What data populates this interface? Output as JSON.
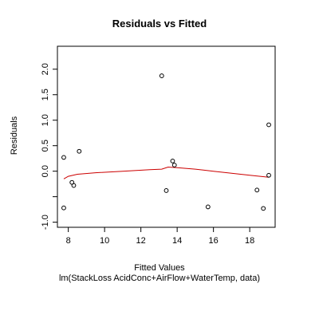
{
  "chart_data": {
    "type": "scatter",
    "title": "Residuals vs Fitted",
    "xlabel": "Fitted Values",
    "subtitle": "lm(StackLoss AcidConc+AirFlow+WaterTemp, data)",
    "ylabel": "Residuals",
    "xlim": [
      7.4,
      19.4
    ],
    "ylim": [
      -1.1,
      2.45
    ],
    "x_ticks": [
      8,
      10,
      12,
      14,
      16,
      18
    ],
    "x_tick_labels": [
      "8",
      "10",
      "12",
      "14",
      "16",
      "18"
    ],
    "y_ticks": [
      -1.0,
      -0.5,
      0.0,
      0.5,
      1.0,
      1.5,
      2.0
    ],
    "y_tick_labels": [
      "-1.0",
      "",
      "0.0",
      "0.5",
      "1.0",
      "1.5",
      "2.0"
    ],
    "points": [
      {
        "x": 7.75,
        "y": 0.27
      },
      {
        "x": 7.75,
        "y": -0.72
      },
      {
        "x": 8.2,
        "y": -0.22
      },
      {
        "x": 8.3,
        "y": -0.28
      },
      {
        "x": 8.6,
        "y": 0.39
      },
      {
        "x": 13.15,
        "y": 1.87
      },
      {
        "x": 13.4,
        "y": -0.38
      },
      {
        "x": 13.75,
        "y": 0.2
      },
      {
        "x": 13.85,
        "y": 0.12
      },
      {
        "x": 15.7,
        "y": -0.7
      },
      {
        "x": 18.4,
        "y": -0.37
      },
      {
        "x": 18.75,
        "y": -0.73
      },
      {
        "x": 19.05,
        "y": 0.91
      },
      {
        "x": 19.05,
        "y": -0.08
      }
    ],
    "smooth": {
      "color": "#cc0000",
      "x": [
        7.75,
        8.0,
        8.5,
        9.5,
        11.0,
        12.5,
        13.15,
        13.5,
        14.0,
        15.0,
        16.0,
        17.0,
        18.0,
        19.05
      ],
      "y": [
        -0.15,
        -0.1,
        -0.06,
        -0.03,
        0.0,
        0.03,
        0.04,
        0.08,
        0.07,
        0.04,
        0.0,
        -0.04,
        -0.08,
        -0.12
      ]
    }
  }
}
